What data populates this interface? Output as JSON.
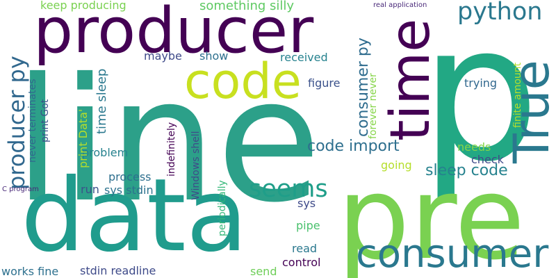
{
  "words": [
    {
      "text": "line",
      "color": "#2ca089",
      "rotated": false
    },
    {
      "text": "p",
      "color": "#22a884",
      "rotated": false
    },
    {
      "text": "data",
      "color": "#209c8d",
      "rotated": false
    },
    {
      "text": "pre",
      "color": "#7ad151",
      "rotated": false
    },
    {
      "text": "producer",
      "color": "#440154",
      "rotated": false
    },
    {
      "text": "consumer",
      "color": "#2a788e",
      "rotated": false
    },
    {
      "text": "code",
      "color": "#c8e020",
      "rotated": false
    },
    {
      "text": "time",
      "color": "#440154",
      "rotated": true
    },
    {
      "text": "True",
      "color": "#2a788e",
      "rotated": true
    },
    {
      "text": "python",
      "color": "#2a788e",
      "rotated": false
    },
    {
      "text": "producer py",
      "color": "#31688e",
      "rotated": true
    },
    {
      "text": "seems",
      "color": "#1f9e89",
      "rotated": false
    },
    {
      "text": "sleep code",
      "color": "#26828e",
      "rotated": false
    },
    {
      "text": "code import",
      "color": "#2e6f8e",
      "rotated": false
    },
    {
      "text": "consumer py",
      "color": "#2f6c8e",
      "rotated": true
    },
    {
      "text": "keep producing",
      "color": "#7ad151",
      "rotated": false
    },
    {
      "text": "something silly",
      "color": "#5ec962",
      "rotated": false
    },
    {
      "text": "real application",
      "color": "#482878",
      "rotated": false
    },
    {
      "text": "maybe",
      "color": "#3e4a89",
      "rotated": false
    },
    {
      "text": "show",
      "color": "#2d708e",
      "rotated": false
    },
    {
      "text": "received",
      "color": "#26828e",
      "rotated": false
    },
    {
      "text": "figure",
      "color": "#3b528b",
      "rotated": false
    },
    {
      "text": "trying",
      "color": "#31688e",
      "rotated": false
    },
    {
      "text": "check",
      "color": "#3e4a89",
      "rotated": false
    },
    {
      "text": "needs",
      "color": "#86d549",
      "rotated": false
    },
    {
      "text": "going",
      "color": "#b5de2b",
      "rotated": false
    },
    {
      "text": "problem",
      "color": "#26828e",
      "rotated": false
    },
    {
      "text": "process",
      "color": "#2e6f8e",
      "rotated": false
    },
    {
      "text": "run",
      "color": "#3b528b",
      "rotated": false
    },
    {
      "text": "sys stdin",
      "color": "#2c728e",
      "rotated": false
    },
    {
      "text": "sys",
      "color": "#3e4a89",
      "rotated": false
    },
    {
      "text": "pipe",
      "color": "#4ac16d",
      "rotated": false
    },
    {
      "text": "read",
      "color": "#2a788e",
      "rotated": false
    },
    {
      "text": "send",
      "color": "#6ece58",
      "rotated": false
    },
    {
      "text": "control",
      "color": "#440154",
      "rotated": false
    },
    {
      "text": "works fine",
      "color": "#2d708e",
      "rotated": false
    },
    {
      "text": "stdin readline",
      "color": "#3e4a89",
      "rotated": false
    },
    {
      "text": "C program",
      "color": "#482878",
      "rotated": false
    },
    {
      "text": "time sleep",
      "color": "#2a788e",
      "rotated": true
    },
    {
      "text": "print Data'",
      "color": "#b5de2b",
      "rotated": true
    },
    {
      "text": "print Got",
      "color": "#3b528b",
      "rotated": true
    },
    {
      "text": "never terminates",
      "color": "#31688e",
      "rotated": true
    },
    {
      "text": "indefinitely",
      "color": "#440154",
      "rotated": true
    },
    {
      "text": "Windows shell",
      "color": "#3e4a89",
      "rotated": true
    },
    {
      "text": "periodically",
      "color": "#35b779",
      "rotated": true
    },
    {
      "text": "forever never",
      "color": "#86d549",
      "rotated": true
    },
    {
      "text": "finite amount",
      "color": "#b5de2b",
      "rotated": true
    }
  ]
}
